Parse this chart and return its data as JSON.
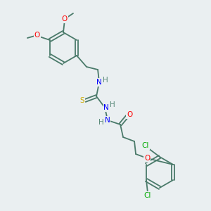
{
  "bg_color": "#eaeff1",
  "bond_color": "#4a7a6a",
  "atom_colors": {
    "N": "#0000ff",
    "O": "#ff0000",
    "S": "#ccaa00",
    "Cl": "#00aa00",
    "H": "#5a8a7a",
    "C": "#4a7a6a"
  },
  "font_size": 7.5,
  "line_width": 1.3
}
